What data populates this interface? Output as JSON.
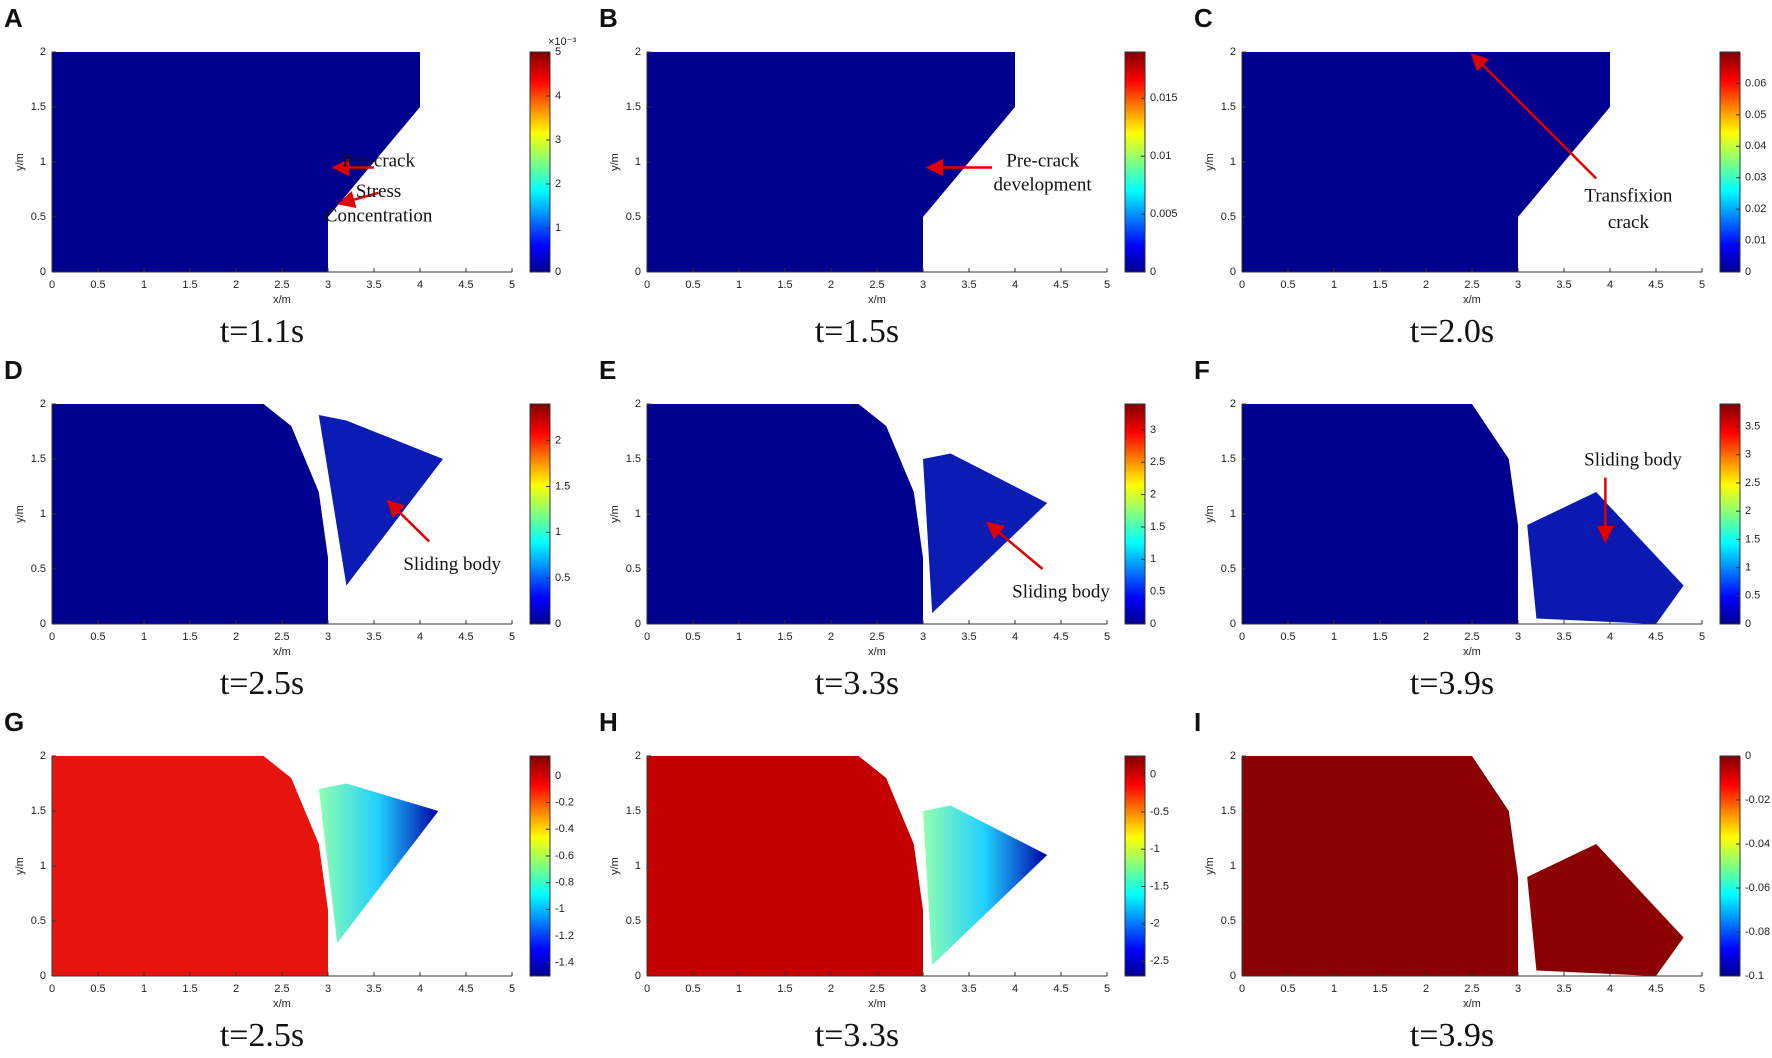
{
  "chart_data": [
    {
      "type": "field",
      "label": "A",
      "caption": "t=1.1s",
      "xlabel": "x/m",
      "ylabel": "y/m",
      "xlim": [
        0,
        5
      ],
      "xticks": [
        0,
        0.5,
        1,
        1.5,
        2,
        2.5,
        3,
        3.5,
        4,
        4.5,
        5
      ],
      "ylim": [
        0,
        2
      ],
      "yticks": [
        0,
        0.5,
        1,
        1.5,
        2
      ],
      "colorbar": {
        "lim": [
          0,
          5
        ],
        "ticks": [
          0,
          1,
          2,
          3,
          4,
          5
        ],
        "multiplier": "×10⁻³"
      },
      "series": [
        {
          "color": "#00008f",
          "x": [
            0,
            0,
            4,
            4,
            3,
            3
          ],
          "y": [
            0,
            2,
            2,
            1.5,
            0.5,
            0
          ]
        }
      ],
      "annotations": [
        "Pre-crack",
        "Stress",
        "Concentration"
      ]
    },
    {
      "type": "field",
      "label": "B",
      "caption": "t=1.5s",
      "xlabel": "x/m",
      "ylabel": "y/m",
      "xlim": [
        0,
        5
      ],
      "xticks": [
        0,
        0.5,
        1,
        1.5,
        2,
        2.5,
        3,
        3.5,
        4,
        4.5,
        5
      ],
      "ylim": [
        0,
        2
      ],
      "yticks": [
        0,
        0.5,
        1,
        1.5,
        2
      ],
      "colorbar": {
        "lim": [
          0,
          0.019
        ],
        "ticks": [
          0,
          0.005,
          0.01,
          0.015
        ]
      },
      "series": [
        {
          "color": "#00008f",
          "x": [
            0,
            0,
            4,
            4,
            3,
            3
          ],
          "y": [
            0,
            2,
            2,
            1.5,
            0.5,
            0
          ]
        }
      ],
      "annotations": [
        "Pre-crack",
        "development"
      ]
    },
    {
      "type": "field",
      "label": "C",
      "caption": "t=2.0s",
      "xlabel": "x/m",
      "ylabel": "y/m",
      "xlim": [
        0,
        5
      ],
      "xticks": [
        0,
        0.5,
        1,
        1.5,
        2,
        2.5,
        3,
        3.5,
        4,
        4.5,
        5
      ],
      "ylim": [
        0,
        2
      ],
      "yticks": [
        0,
        0.5,
        1,
        1.5,
        2
      ],
      "colorbar": {
        "lim": [
          0,
          0.07
        ],
        "ticks": [
          0,
          0.01,
          0.02,
          0.03,
          0.04,
          0.05,
          0.06
        ]
      },
      "series": [
        {
          "color": "#00008f",
          "x": [
            0,
            0,
            4,
            4,
            3,
            3
          ],
          "y": [
            0,
            2,
            2,
            1.5,
            0.5,
            0
          ]
        }
      ],
      "annotations": [
        "Transfixion",
        "crack"
      ]
    },
    {
      "type": "field",
      "label": "D",
      "caption": "t=2.5s",
      "xlabel": "x/m",
      "ylabel": "y/m",
      "xlim": [
        0,
        5
      ],
      "xticks": [
        0,
        0.5,
        1,
        1.5,
        2,
        2.5,
        3,
        3.5,
        4,
        4.5,
        5
      ],
      "ylim": [
        0,
        2
      ],
      "yticks": [
        0,
        0.5,
        1,
        1.5,
        2
      ],
      "colorbar": {
        "lim": [
          0,
          2.4
        ],
        "ticks": [
          0,
          0.5,
          1,
          1.5,
          2
        ]
      },
      "series": [
        {
          "color": "#00008f",
          "x": [
            0,
            0,
            2.3,
            2.6,
            2.9,
            3,
            3
          ],
          "y": [
            0,
            2,
            2,
            1.8,
            1.2,
            0.6,
            0
          ]
        },
        {
          "color": "#0a1cb4",
          "x": [
            2.9,
            3.2,
            4.25,
            3.2
          ],
          "y": [
            1.9,
            1.85,
            1.5,
            0.35
          ]
        }
      ],
      "annotations": [
        "Sliding body"
      ]
    },
    {
      "type": "field",
      "label": "E",
      "caption": "t=3.3s",
      "xlabel": "x/m",
      "ylabel": "y/m",
      "xlim": [
        0,
        5
      ],
      "xticks": [
        0,
        0.5,
        1,
        1.5,
        2,
        2.5,
        3,
        3.5,
        4,
        4.5,
        5
      ],
      "ylim": [
        0,
        2
      ],
      "yticks": [
        0,
        0.5,
        1,
        1.5,
        2
      ],
      "colorbar": {
        "lim": [
          0,
          3.4
        ],
        "ticks": [
          0,
          0.5,
          1,
          1.5,
          2,
          2.5,
          3
        ]
      },
      "series": [
        {
          "color": "#00008f",
          "x": [
            0,
            0,
            2.3,
            2.6,
            2.9,
            3,
            3
          ],
          "y": [
            0,
            2,
            2,
            1.8,
            1.2,
            0.6,
            0
          ]
        },
        {
          "color": "#0a1cb4",
          "x": [
            3.0,
            3.3,
            4.35,
            3.1
          ],
          "y": [
            1.5,
            1.55,
            1.1,
            0.1
          ]
        }
      ],
      "annotations": [
        "Sliding body"
      ]
    },
    {
      "type": "field",
      "label": "F",
      "caption": "t=3.9s",
      "xlabel": "x/m",
      "ylabel": "y/m",
      "xlim": [
        0,
        5
      ],
      "xticks": [
        0,
        0.5,
        1,
        1.5,
        2,
        2.5,
        3,
        3.5,
        4,
        4.5,
        5
      ],
      "ylim": [
        0,
        2
      ],
      "yticks": [
        0,
        0.5,
        1,
        1.5,
        2
      ],
      "colorbar": {
        "lim": [
          0,
          3.9
        ],
        "ticks": [
          0,
          0.5,
          1,
          1.5,
          2,
          2.5,
          3,
          3.5
        ]
      },
      "series": [
        {
          "color": "#00008f",
          "x": [
            0,
            0,
            2.5,
            2.9,
            3,
            3
          ],
          "y": [
            0,
            2,
            2,
            1.5,
            0.9,
            0
          ]
        },
        {
          "color": "#0a1ab0",
          "x": [
            3.1,
            3.85,
            4.8,
            4.5,
            3.2
          ],
          "y": [
            0.9,
            1.2,
            0.35,
            0,
            0.05
          ]
        }
      ],
      "annotations": [
        "Sliding body"
      ]
    },
    {
      "type": "field",
      "label": "G",
      "caption": "t=2.5s",
      "xlabel": "x/m",
      "ylabel": "y/m",
      "xlim": [
        0,
        5
      ],
      "xticks": [
        0,
        0.5,
        1,
        1.5,
        2,
        2.5,
        3,
        3.5,
        4,
        4.5,
        5
      ],
      "ylim": [
        0,
        2
      ],
      "yticks": [
        0,
        0.5,
        1,
        1.5,
        2
      ],
      "colorbar": {
        "lim": [
          -1.5,
          0.15
        ],
        "ticks": [
          0,
          -0.2,
          -0.4,
          -0.6,
          -0.8,
          -1,
          -1.2,
          -1.4
        ]
      },
      "series": [
        {
          "color": "#e6140c",
          "x": [
            0,
            0,
            2.3,
            2.6,
            2.9,
            3,
            3
          ],
          "y": [
            0,
            2,
            2,
            1.8,
            1.2,
            0.6,
            0
          ]
        },
        {
          "color": [
            "#90ffb0",
            "#20d0ff",
            "#0000a8"
          ],
          "x": [
            2.9,
            3.2,
            4.2,
            3.1
          ],
          "y": [
            1.7,
            1.75,
            1.5,
            0.3
          ]
        }
      ],
      "annotations": []
    },
    {
      "type": "field",
      "label": "H",
      "caption": "t=3.3s",
      "xlabel": "x/m",
      "ylabel": "y/m",
      "xlim": [
        0,
        5
      ],
      "xticks": [
        0,
        0.5,
        1,
        1.5,
        2,
        2.5,
        3,
        3.5,
        4,
        4.5,
        5
      ],
      "ylim": [
        0,
        2
      ],
      "yticks": [
        0,
        0.5,
        1,
        1.5,
        2
      ],
      "colorbar": {
        "lim": [
          -2.7,
          0.25
        ],
        "ticks": [
          0,
          -0.5,
          -1,
          -1.5,
          -2,
          -2.5
        ]
      },
      "series": [
        {
          "color": "#c40000",
          "x": [
            0,
            0,
            2.3,
            2.6,
            2.9,
            3,
            3
          ],
          "y": [
            0,
            2,
            2,
            1.8,
            1.2,
            0.6,
            0
          ]
        },
        {
          "color": [
            "#90ffb0",
            "#20d0ff",
            "#0000a8"
          ],
          "x": [
            3.0,
            3.3,
            4.35,
            3.1
          ],
          "y": [
            1.5,
            1.55,
            1.1,
            0.1
          ]
        }
      ],
      "annotations": []
    },
    {
      "type": "field",
      "label": "I",
      "caption": "t=3.9s",
      "xlabel": "x/m",
      "ylabel": "y/m",
      "xlim": [
        0,
        5
      ],
      "xticks": [
        0,
        0.5,
        1,
        1.5,
        2,
        2.5,
        3,
        3.5,
        4,
        4.5,
        5
      ],
      "ylim": [
        0,
        2
      ],
      "yticks": [
        0,
        0.5,
        1,
        1.5,
        2
      ],
      "colorbar": {
        "lim": [
          -0.1,
          0
        ],
        "ticks": [
          0,
          -0.02,
          -0.04,
          -0.06,
          -0.08,
          -0.1
        ]
      },
      "series": [
        {
          "color": "#8b0000",
          "x": [
            0,
            0,
            2.5,
            2.9,
            3,
            3
          ],
          "y": [
            0,
            2,
            2,
            1.5,
            0.9,
            0
          ]
        },
        {
          "color": "#8b0000",
          "x": [
            3.1,
            3.85,
            4.8,
            4.5,
            3.2
          ],
          "y": [
            0.9,
            1.2,
            0.35,
            0,
            0.05
          ]
        }
      ],
      "annotations": []
    }
  ]
}
